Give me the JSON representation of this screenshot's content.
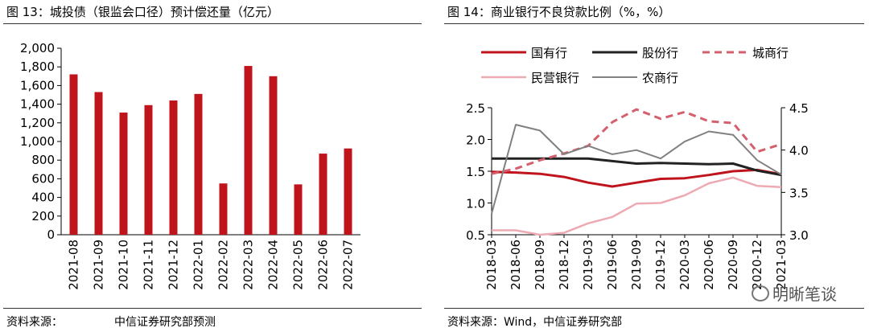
{
  "left": {
    "title": "图 13：城投债（银监会口径）预计偿还量（亿元）",
    "source_label": "资料来源：",
    "source_text": "中信证券研究部预测"
  },
  "right": {
    "title": "图 14：商业银行不良贷款比例（%，%）",
    "source_label": "资料来源：",
    "source_text": "Wind，中信证券研究部"
  },
  "watermark": "明晰笔谈",
  "chart_data": [
    {
      "type": "bar",
      "title": "图 13：城投债（银监会口径）预计偿还量（亿元）",
      "categories": [
        "2021-08",
        "2021-09",
        "2021-10",
        "2021-11",
        "2021-12",
        "2022-01",
        "2022-02",
        "2022-03",
        "2022-04",
        "2022-05",
        "2022-06",
        "2022-07"
      ],
      "values": [
        1720,
        1530,
        1310,
        1390,
        1440,
        1510,
        550,
        1810,
        1700,
        540,
        870,
        925
      ],
      "ylim": [
        0,
        2000
      ],
      "yticks": [
        "0",
        "200",
        "400",
        "600",
        "800",
        "1,000",
        "1,200",
        "1,400",
        "1,600",
        "1,800",
        "2,000"
      ],
      "color": "#c0141d",
      "grid": false
    },
    {
      "type": "line",
      "title": "图 14：商业银行不良贷款比例（%，%）",
      "categories": [
        "2018-03",
        "2018-06",
        "2018-09",
        "2018-12",
        "2019-03",
        "2019-06",
        "2019-09",
        "2019-12",
        "2020-03",
        "2020-06",
        "2020-09",
        "2020-12",
        "2021-03"
      ],
      "ylim_left": [
        0.5,
        2.5
      ],
      "yticks_left": [
        "0.5",
        "1.0",
        "1.5",
        "2.0",
        "2.5"
      ],
      "ylim_right": [
        3.0,
        4.5
      ],
      "yticks_right": [
        "3.0",
        "3.5",
        "4.0",
        "4.5"
      ],
      "legend_position": "top",
      "grid": false,
      "series": [
        {
          "name": "国有行",
          "axis": "left",
          "color": "#c0141d",
          "style": "solid",
          "width": 3,
          "values": [
            1.49,
            1.48,
            1.46,
            1.41,
            1.32,
            1.26,
            1.32,
            1.38,
            1.39,
            1.44,
            1.5,
            1.52,
            1.45
          ]
        },
        {
          "name": "股份行",
          "axis": "left",
          "color": "#222222",
          "style": "solid",
          "width": 3,
          "values": [
            1.7,
            1.7,
            1.7,
            1.7,
            1.7,
            1.66,
            1.62,
            1.63,
            1.62,
            1.61,
            1.62,
            1.51,
            1.44
          ]
        },
        {
          "name": "城商行",
          "axis": "right",
          "color": "#d4606e",
          "style": "dashed",
          "width": 3,
          "values": [
            3.72,
            3.78,
            3.88,
            3.96,
            4.05,
            4.33,
            4.48,
            4.37,
            4.45,
            4.34,
            4.32,
            3.98,
            4.07
          ]
        },
        {
          "name": "民营银行",
          "axis": "left",
          "color": "#eeaab3",
          "style": "solid",
          "width": 2.5,
          "values": [
            0.57,
            0.57,
            0.5,
            0.53,
            0.68,
            0.78,
            0.99,
            1.0,
            1.12,
            1.31,
            1.4,
            1.27,
            1.25
          ]
        },
        {
          "name": "农商行",
          "axis": "right",
          "color": "#808080",
          "style": "solid",
          "width": 2,
          "values": [
            3.25,
            4.3,
            4.23,
            3.95,
            4.05,
            3.95,
            4.0,
            3.9,
            4.1,
            4.22,
            4.18,
            3.88,
            3.71
          ]
        }
      ]
    }
  ]
}
